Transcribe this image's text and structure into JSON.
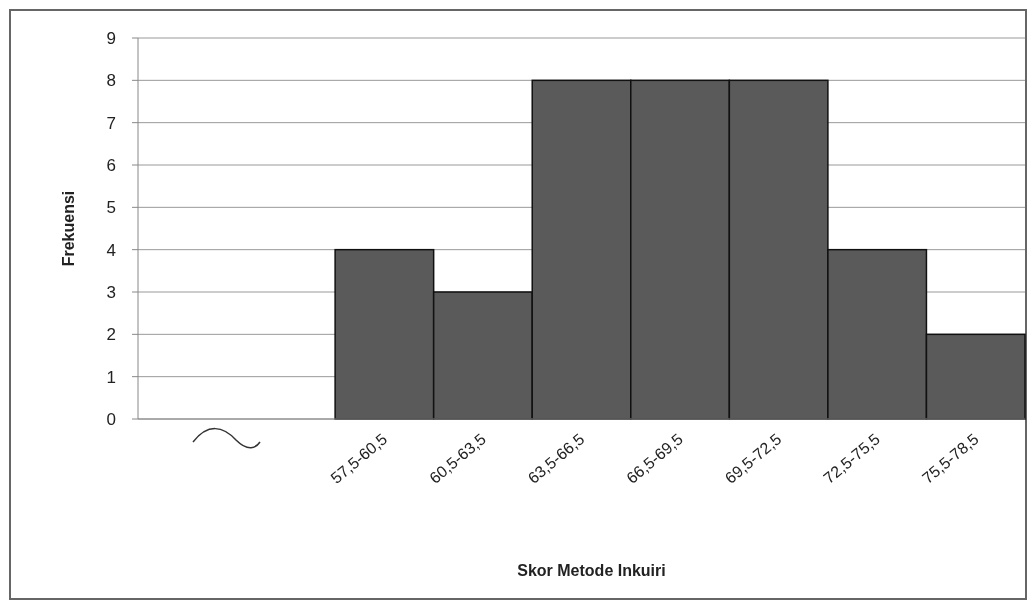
{
  "chart_data": {
    "type": "bar",
    "xlabel": "Skor Metode Inkuiri",
    "ylabel": "Frekuensi",
    "categories": [
      null,
      null,
      "57,5-60,5",
      "60,5-63,5",
      "63,5-66,5",
      "66,5-69,5",
      "69,5-72,5",
      "72,5-75,5",
      "75,5-78,5"
    ],
    "values": [
      null,
      null,
      4,
      3,
      8,
      8,
      8,
      4,
      2
    ],
    "color": "#5a5a5a",
    "ylim": [
      0,
      9
    ],
    "yticks": [
      0,
      1,
      2,
      3,
      4,
      5,
      6,
      7,
      8,
      9
    ],
    "grid": "y"
  }
}
